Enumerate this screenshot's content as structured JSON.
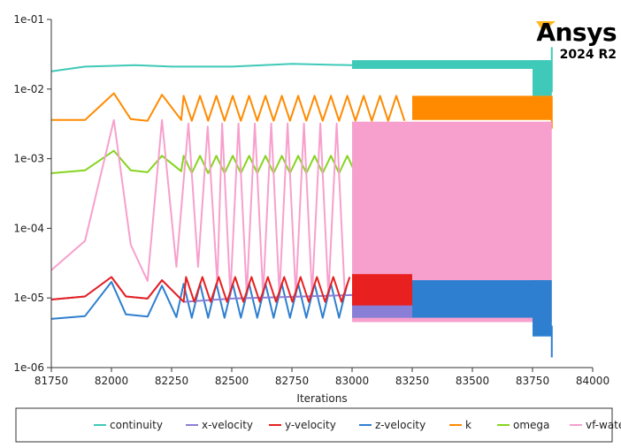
{
  "brand": {
    "name": "Ansys",
    "version": "2024 R2",
    "accent_color": "#ffb71b"
  },
  "chart_data": {
    "type": "line",
    "title": "",
    "xlabel": "Iterations",
    "ylabel": "",
    "xlim": [
      81750,
      84000
    ],
    "ylim": [
      1e-06,
      0.1
    ],
    "yscale": "log",
    "x_ticks": [
      81750,
      82000,
      82250,
      82500,
      82750,
      83000,
      83250,
      83500,
      83750,
      84000
    ],
    "y_ticks": [
      {
        "value": 0.1,
        "label": "1e-01"
      },
      {
        "value": 0.01,
        "label": "1e-02"
      },
      {
        "value": 0.001,
        "label": "1e-03"
      },
      {
        "value": 0.0001,
        "label": "1e-04"
      },
      {
        "value": 1e-05,
        "label": "1e-05"
      },
      {
        "value": 1e-06,
        "label": "1e-06"
      }
    ],
    "grid": false,
    "legend_position": "bottom",
    "series": [
      {
        "name": "continuity",
        "color": "#3fc9b8",
        "anchors": [
          [
            81750,
            0.018
          ],
          [
            81890,
            0.021
          ],
          [
            82100,
            0.022
          ],
          [
            82250,
            0.021
          ],
          [
            82500,
            0.021
          ],
          [
            82750,
            0.023
          ],
          [
            83000,
            0.022
          ],
          [
            83250,
            0.023
          ],
          [
            83500,
            0.022
          ],
          [
            83800,
            0.021
          ]
        ],
        "band": {
          "from": 83000,
          "to": 83820,
          "upper": 0.026,
          "lower": 0.0195
        },
        "tail": {
          "from": 83750,
          "to": 83830,
          "lower": 0.008
        },
        "end_spike": {
          "x": 83830,
          "upper": 0.04,
          "lower": 0.009
        }
      },
      {
        "name": "x-velocity",
        "color": "#8a7fd6",
        "anchors": [
          [
            81750,
            9.5e-06
          ],
          [
            81890,
            1.05e-05
          ],
          [
            82000,
            2e-05
          ],
          [
            82060,
            1.05e-05
          ],
          [
            82150,
            9.8e-06
          ],
          [
            82210,
            1.8e-05
          ],
          [
            82300,
            8.8e-06
          ],
          [
            82500,
            9.8e-06
          ],
          [
            83000,
            1.1e-05
          ],
          [
            83250,
            1.05e-05
          ]
        ],
        "band": {
          "from": 83000,
          "to": 83250,
          "upper": 1.7e-05,
          "lower": 5.2e-06
        }
      },
      {
        "name": "y-velocity",
        "color": "#e82020",
        "anchors": [
          [
            81750,
            9.5e-06
          ],
          [
            81890,
            1.05e-05
          ],
          [
            82000,
            2e-05
          ],
          [
            82060,
            1.05e-05
          ],
          [
            82150,
            9.8e-06
          ],
          [
            82210,
            1.8e-05
          ],
          [
            82300,
            8.8e-06
          ],
          [
            82500,
            9.8e-06
          ],
          [
            82750,
            1.2e-05
          ],
          [
            83000,
            1.1e-05
          ]
        ],
        "spikes": {
          "from": 82310,
          "to": 83000,
          "step": 34,
          "high": 2e-05,
          "low": 8.8e-06
        },
        "band": {
          "from": 83000,
          "to": 83250,
          "upper": 2.2e-05,
          "lower": 7.8e-06
        }
      },
      {
        "name": "z-velocity",
        "color": "#2e7fd0",
        "anchors": [
          [
            81750,
            5e-06
          ],
          [
            81890,
            5.5e-06
          ],
          [
            82000,
            1.7e-05
          ],
          [
            82060,
            5.8e-06
          ],
          [
            82150,
            5.4e-06
          ],
          [
            82210,
            1.5e-05
          ],
          [
            82270,
            5.3e-06
          ],
          [
            82500,
            5.8e-06
          ],
          [
            82750,
            6.2e-06
          ],
          [
            83000,
            5.8e-06
          ]
        ],
        "spikes": {
          "from": 82300,
          "to": 83000,
          "step": 34,
          "high": 1.6e-05,
          "low": 5.2e-06
        },
        "band": {
          "from": 83000,
          "to": 83820,
          "upper": 1.8e-05,
          "lower": 5.2e-06
        },
        "tail": {
          "from": 83750,
          "to": 83830,
          "lower": 2.8e-06
        },
        "end_spike": {
          "x": 83830,
          "upper": 4e-06,
          "lower": 1.4e-06
        }
      },
      {
        "name": "k",
        "color": "#ff8a00",
        "anchors": [
          [
            81750,
            0.0036
          ],
          [
            81890,
            0.0036
          ],
          [
            82010,
            0.0087
          ],
          [
            82080,
            0.0037
          ],
          [
            82150,
            0.0035
          ],
          [
            82210,
            0.0083
          ],
          [
            82290,
            0.0036
          ]
        ],
        "spikes": {
          "from": 82300,
          "to": 83250,
          "step": 34,
          "high": 0.008,
          "low": 0.0035
        },
        "band": {
          "from": 83250,
          "to": 83830,
          "upper": 0.008,
          "lower": 0.0036
        },
        "end_spike": {
          "x": 83830,
          "upper": 0.008,
          "lower": 0.0027
        }
      },
      {
        "name": "omega",
        "color": "#86d41e",
        "anchors": [
          [
            81750,
            0.00062
          ],
          [
            81890,
            0.00068
          ],
          [
            82010,
            0.0013
          ],
          [
            82080,
            0.00068
          ],
          [
            82150,
            0.00064
          ],
          [
            82210,
            0.0011
          ],
          [
            82290,
            0.00066
          ]
        ],
        "spikes": {
          "from": 82300,
          "to": 83250,
          "step": 34,
          "high": 0.0011,
          "low": 0.00062
        },
        "band": {
          "from": 83000,
          "to": 83250,
          "upper": 0.0011,
          "lower": 0.00062
        }
      },
      {
        "name": "vf-water",
        "color": "#f7a0cd",
        "anchors": [
          [
            81750,
            2.5e-05
          ],
          [
            81890,
            6.6e-05
          ],
          [
            82010,
            0.0036
          ],
          [
            82080,
            5.8e-05
          ],
          [
            82150,
            1.75e-05
          ],
          [
            82210,
            0.0036
          ],
          [
            82270,
            2.8e-05
          ],
          [
            82320,
            0.0032
          ],
          [
            82360,
            2.8e-05
          ],
          [
            82400,
            0.0029
          ],
          [
            82440,
            1.6e-05
          ]
        ],
        "spikes": {
          "from": 82460,
          "to": 83000,
          "step": 34,
          "high": 0.0032,
          "low": 1.1e-05
        },
        "band": {
          "from": 83000,
          "to": 83830,
          "upper": 0.0034,
          "lower": 4.5e-06
        }
      }
    ]
  }
}
